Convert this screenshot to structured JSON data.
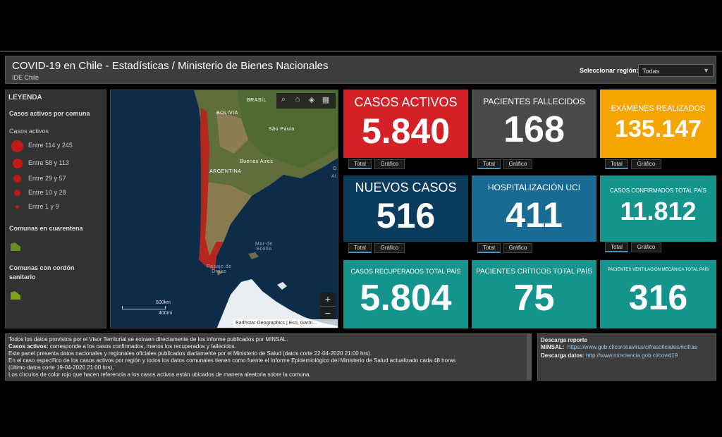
{
  "header": {
    "title": "COVID-19 en Chile - Estadísticas / Ministerio de Bienes Nacionales",
    "subtitle": "IDE Chile",
    "region_label": "Seleccionar región:",
    "region_value": "Todas"
  },
  "legend": {
    "title": "LEYENDA",
    "section_active": "Casos activos por comuna",
    "sub_active": "Casos activos",
    "items": [
      "Entre 114 y 245",
      "Entre 58 y 113",
      "Entre 29 y 57",
      "Entre 10 y 28",
      "Entre 1 y 9"
    ],
    "section_quarantine": "Comunas en cuarentena",
    "section_cordon": "Comunas con cordón sanitario",
    "colors": {
      "dot": "#c11b17",
      "polygon": "#6b8e23"
    }
  },
  "map": {
    "labels": {
      "brasil": "BRASIL",
      "bolivia": "BOLIVIA",
      "sao_paulo": "São Paulo",
      "buenos_aires": "Buenos Aires",
      "argentina": "ARGENTINA",
      "mar_scotia": "Mar de\nScotia",
      "pasaje_drake": "Pasaje de\nDrake",
      "ocean_o": "O",
      "ocean_at": "At"
    },
    "scale_km": "600km",
    "scale_mi": "400mi",
    "attribution": "Earthstar Geographics | Esri, Garm...",
    "toolbar_icons": [
      "search-icon",
      "home-icon",
      "layers-icon",
      "basemap-icon"
    ],
    "zoom_in": "+",
    "zoom_out": "−"
  },
  "tiles": {
    "activos": {
      "title": "CASOS ACTIVOS",
      "value": "5.840",
      "color": "#d42127"
    },
    "fallecidos": {
      "title": "PACIENTES FALLECIDOS",
      "value": "168",
      "color": "#4a4a4a"
    },
    "examenes": {
      "title": "EXÁMENES REALIZADOS",
      "value": "135.147",
      "color": "#f5a500"
    },
    "nuevos": {
      "title": "NUEVOS CASOS",
      "value": "516",
      "color": "#0b3c5d"
    },
    "uci": {
      "title": "HOSPITALIZACIÓN UCI",
      "value": "411",
      "color": "#1a6b93"
    },
    "confirmados": {
      "title": "CASOS CONFIRMADOS TOTAL PAÍS",
      "value": "11.812",
      "color": "#14948c"
    },
    "recuperados": {
      "title": "CASOS RECUPERADOS TOTAL PAÍS",
      "value": "5.804",
      "color": "#14948c"
    },
    "criticos": {
      "title": "PACIENTES CRÍTICOS TOTAL PAÍS",
      "value": "75",
      "color": "#14948c"
    },
    "ventilacion": {
      "title": "PACIENTES VENTILACIÓN MECÁNICA TOTAL PAÍS",
      "value": "316",
      "color": "#14948c"
    }
  },
  "tab_labels": {
    "total": "Total",
    "grafico": "Gráfico"
  },
  "footer_left": {
    "line1": "Todos los datos provistos por el Visor Territorial se extraen directamente de los informe publicados por MINSAL.",
    "line2_bold": "Casos activos:",
    "line2_rest": " corresponde a los casos confirmados, menos los recuperados y fallecidos.",
    "line3": "Este panel presenta datos nacionales y regionales oficiales publicados diariamente por el Ministerio de Salud (datos corte 22-04-2020 21:00 hrs).",
    "line4": "En el caso específico de los casos activos por región y todos los datos comunales tienen como fuente el Informe Epidemiológico del Ministerio de Salud actualizado cada 48 horas",
    "line5": "(último datos corte 19-04-2020 21:00 hrs).",
    "line6": "Los círculos de color rojo que hacen referencia a los casos activos están ubicados de manera aleatoria sobre la comuna."
  },
  "footer_right": {
    "title": "Descarga reporte",
    "minsal_label": "MINSAL:",
    "minsal_link": "https://www.gob.cl/coronavirus/cifrasoficiales/#cifras",
    "datos_label": "Descarga datos",
    "datos_link": "http://www.minciencia.gob.cl/covid19"
  }
}
